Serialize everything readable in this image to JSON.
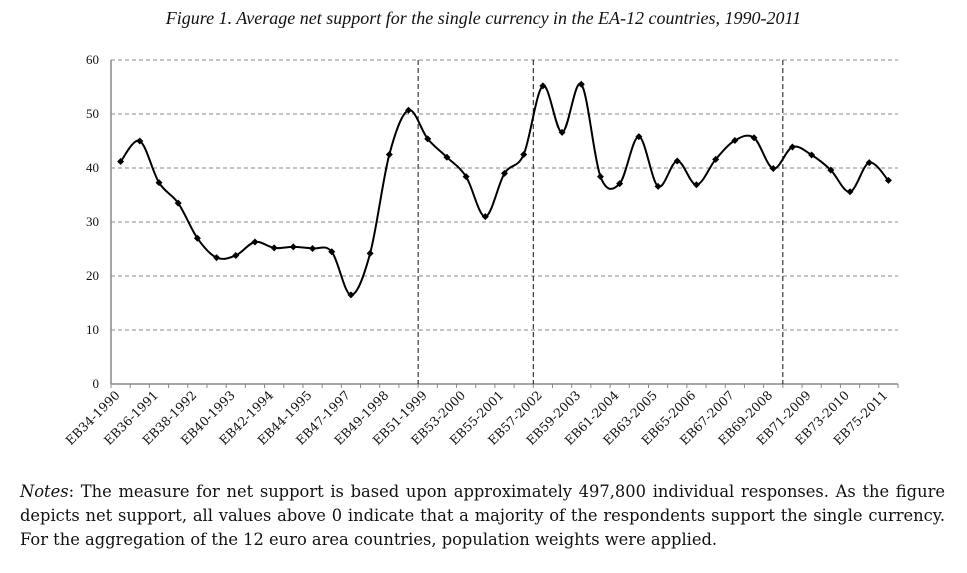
{
  "chart_data": {
    "type": "line",
    "title": "Figure 1. Average net support for the single currency in the EA-12 countries, 1990-2011",
    "xlabel": "",
    "ylabel": "",
    "ylim": [
      0,
      60
    ],
    "yticks": [
      0,
      10,
      20,
      30,
      40,
      50,
      60
    ],
    "grid": true,
    "legend": "none",
    "tick_labels": [
      "EB34-1990",
      "EB36-1991",
      "EB38-1992",
      "EB40-1993",
      "EB42-1994",
      "EB44-1995",
      "EB47-1997",
      "EB49-1998",
      "EB51-1999",
      "EB53-2000",
      "EB55-2001",
      "EB57-2002",
      "EB59-2003",
      "EB61-2004",
      "EB63-2005",
      "EB65-2006",
      "EB67-2007",
      "EB69-2008",
      "EB71-2009",
      "EB73-2010",
      "EB75-2011"
    ],
    "series": [
      {
        "name": "Average net support",
        "values": [
          41.2,
          45.0,
          37.3,
          33.5,
          27.0,
          23.4,
          23.8,
          26.3,
          25.2,
          25.4,
          25.1,
          24.5,
          16.5,
          24.2,
          42.5,
          50.7,
          45.4,
          42.0,
          38.4,
          31.0,
          39.0,
          42.5,
          55.2,
          46.6,
          55.5,
          38.4,
          37.1,
          45.8,
          36.6,
          41.3,
          36.9,
          41.6,
          45.1,
          45.6,
          39.9,
          43.9,
          42.4,
          39.6,
          35.6,
          41.0,
          37.7
        ]
      }
    ],
    "vertical_markers_after_point": [
      16,
      22,
      35
    ]
  },
  "notes": {
    "label": "Notes",
    "text": ": The measure for net support is based upon approximately 497,800 individual responses. As the figure depicts net support, all values above 0 indicate that a majority of the respondents support the single currency. For the aggregation of the 12 euro area countries, population weights were applied."
  }
}
